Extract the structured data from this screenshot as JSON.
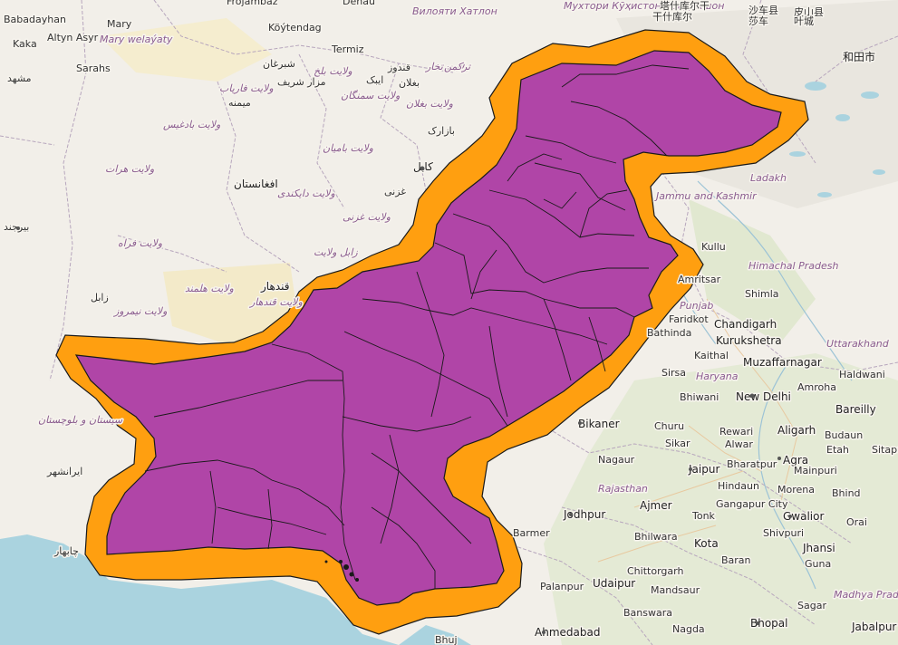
{
  "map": {
    "colors": {
      "land": "#f2efe9",
      "water": "#aad3df",
      "highlight_fill": "#b045a7",
      "buffer": "#ff9f10",
      "outline": "#1a1a1a",
      "desert": "#f4e9c4",
      "green": "#cfe3b4",
      "border": "#b7a6bd"
    },
    "labels": {
      "north": [
        "Frojambaz",
        "Denau",
        "Вилояти Хатлон",
        "Мухтори Кӯҳистони Бадахшон",
        "干什库尔",
        "塔什库尔干",
        "沙车县",
        "皮山县",
        "莎车",
        "叶城",
        "和田市"
      ],
      "turkmen": [
        "Babadayhan",
        "Mary",
        "Altyn Asyr",
        "Mary welaýaty",
        "Kaka",
        "Sarahs",
        "Köýtendag",
        "Termiz"
      ],
      "afghanistan": [
        "مشهد",
        "شبرغان",
        "مزار شریف",
        "ولایت فاریاب",
        "ولایت بلخ",
        "میمنه",
        "ولایت سمنگان",
        "بغلان",
        "ولایت تخار",
        "قندوز",
        "ایبک",
        "ولایت بغلان",
        "ولایت بادغیس",
        "ولایت بامیان",
        "بازارک",
        "ولایت هرات",
        "افغانستان",
        "ولایت دایکندی",
        "کابل",
        "غزنی",
        "ولایت غزنی",
        "ولایت فراه",
        "زابل ولایت",
        "قندهار",
        "ولایت هلمند",
        "ولایت قندهار",
        "زابل",
        "ولایت نیمروز",
        "بیرجند",
        "سیستان و بلوچستان",
        "ایرانشهر",
        "چابهار",
        "ترکمن"
      ],
      "india": [
        "Ladakh",
        "Jammu and Kashmir",
        "Amritsar",
        "Himachal Pradesh",
        "Shimla",
        "Punjab",
        "Faridkot",
        "Chandigarh",
        "Bathinda",
        "Kurukshetra",
        "Uttarakhand",
        "Kaithal",
        "Haryana",
        "Muzaffarnagar",
        "Haldwani",
        "Sirsa",
        "Amroha",
        "Bhiwani",
        "New Delhi",
        "Bareilly",
        "Bikaner",
        "Churu",
        "Rewari",
        "Aligarh",
        "Budaun",
        "Etah",
        "Sitapur",
        "Nagaur",
        "Sikar",
        "Alwar",
        "Jaipur",
        "Bharatpur",
        "Agra",
        "Mainpuri",
        "Rajasthan",
        "Jodhpur",
        "Ajmer",
        "Hindaun",
        "Gangapur City",
        "Morena",
        "Bhind",
        "Tonk",
        "Gwalior",
        "Orai",
        "Jhansi",
        "Barmer",
        "Bhilwara",
        "Kota",
        "Shivpuri",
        "Chittorgarh",
        "Baran",
        "Guna",
        "Palanpur",
        "Udaipur",
        "Mandsaur",
        "Sagar",
        "Madhya Pradesh",
        "Banswara",
        "Ahmedabad",
        "Nagda",
        "Bhopal",
        "Jabalpur",
        "Bhuj",
        "Kullu"
      ]
    }
  }
}
